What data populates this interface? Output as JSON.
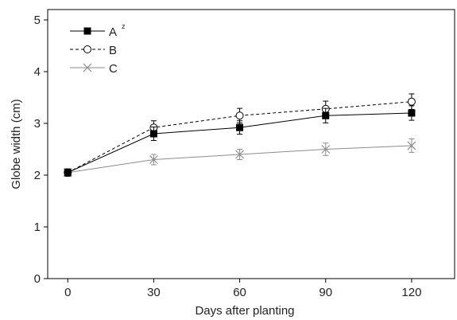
{
  "chart_data": {
    "type": "line",
    "title": "",
    "xlabel": "Days after planting",
    "ylabel": "Globe width (cm)",
    "x": [
      0,
      30,
      60,
      90,
      120
    ],
    "xticks": [
      "0",
      "30",
      "60",
      "90",
      "120"
    ],
    "yticks": [
      "0",
      "1",
      "2",
      "3",
      "4",
      "5"
    ],
    "xlim": [
      -7,
      135
    ],
    "ylim": [
      0,
      5.2
    ],
    "grid": false,
    "legend_position": "top-left",
    "series": [
      {
        "name": "A",
        "superscript": "z",
        "marker": "filled-square",
        "line": "solid",
        "color": "#000000",
        "values": [
          2.05,
          2.8,
          2.92,
          3.15,
          3.2
        ],
        "errors": [
          0.07,
          0.13,
          0.13,
          0.14,
          0.14
        ]
      },
      {
        "name": "B",
        "marker": "open-circle",
        "line": "dashed",
        "color": "#000000",
        "values": [
          2.05,
          2.92,
          3.15,
          3.28,
          3.42
        ],
        "errors": [
          0.07,
          0.13,
          0.14,
          0.15,
          0.15
        ]
      },
      {
        "name": "C",
        "marker": "x",
        "line": "solid",
        "color": "#8c8c8c",
        "values": [
          2.05,
          2.3,
          2.4,
          2.5,
          2.57
        ],
        "errors": [
          0.07,
          0.1,
          0.1,
          0.12,
          0.13
        ]
      }
    ]
  }
}
